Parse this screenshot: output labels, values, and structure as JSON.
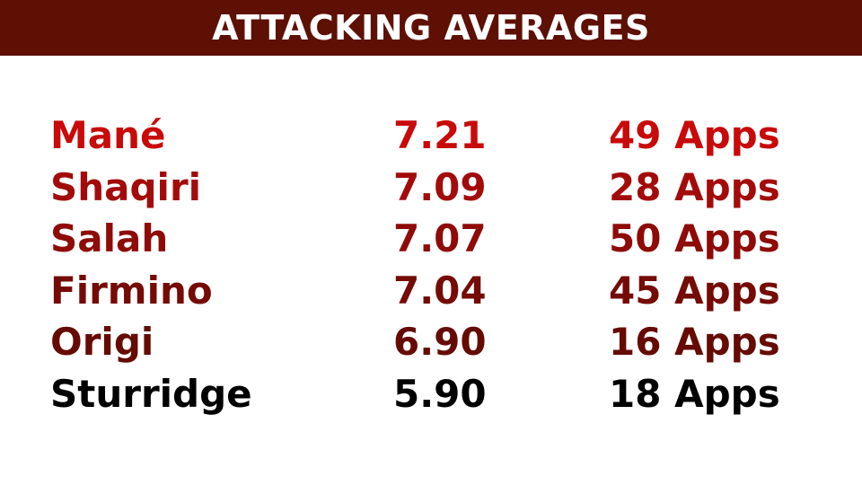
{
  "header": {
    "title": "ATTACKING AVERAGES",
    "background": "#5e1005"
  },
  "players": [
    {
      "name": "Mané",
      "rating": "7.21",
      "apps": "49 Apps",
      "color": "#c80a0a"
    },
    {
      "name": "Shaqiri",
      "rating": "7.09",
      "apps": "28 Apps",
      "color": "#a30b0b"
    },
    {
      "name": "Salah",
      "rating": "7.07",
      "apps": "50 Apps",
      "color": "#8e0b08"
    },
    {
      "name": "Firmino",
      "rating": "7.04",
      "apps": "45 Apps",
      "color": "#750b06"
    },
    {
      "name": "Origi",
      "rating": "6.90",
      "apps": "16 Apps",
      "color": "#650b04"
    },
    {
      "name": "Sturridge",
      "rating": "5.90",
      "apps": "18 Apps",
      "color": "#000000"
    }
  ]
}
